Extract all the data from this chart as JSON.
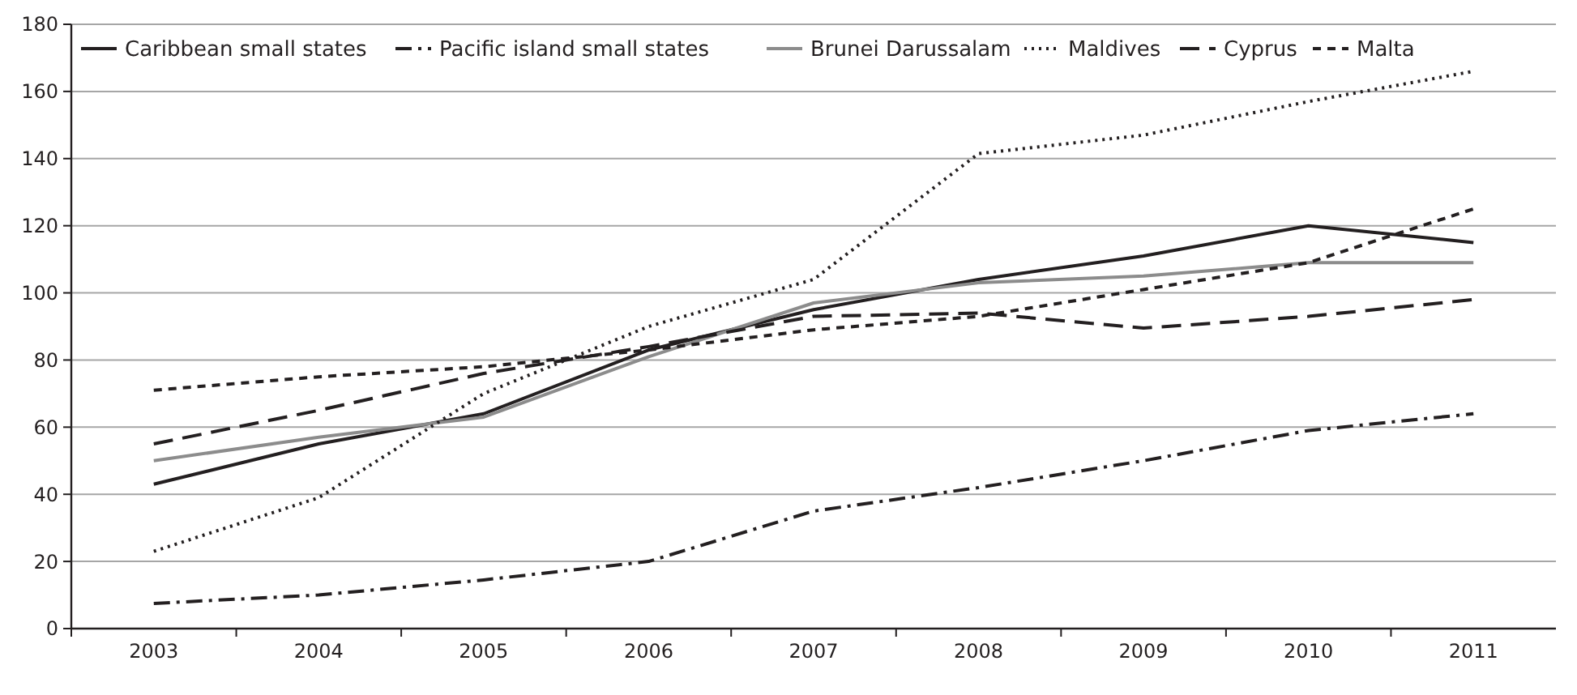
{
  "chart_data": {
    "type": "line",
    "categories": [
      "2003",
      "2004",
      "2005",
      "2006",
      "2007",
      "2008",
      "2009",
      "2010",
      "2011"
    ],
    "ylim": [
      0,
      180
    ],
    "yticks": [
      0,
      20,
      40,
      60,
      80,
      100,
      120,
      140,
      160,
      180
    ],
    "grid": "y",
    "legend": "top",
    "marker": "none",
    "series": [
      {
        "name": "Caribbean small states",
        "color": "#231f20",
        "line_style": "solid",
        "values": [
          43,
          55,
          64,
          83,
          95,
          104,
          111,
          120,
          115
        ]
      },
      {
        "name": "Pacific island small states",
        "color": "#231f20",
        "line_style": "dashdot",
        "values": [
          7.5,
          10,
          14.5,
          20,
          35,
          42,
          50,
          59,
          64
        ]
      },
      {
        "name": "Brunei Darussalam",
        "color": "#8c8c8c",
        "line_style": "solid",
        "values": [
          50,
          57,
          63,
          81,
          97,
          103,
          105,
          109,
          109
        ]
      },
      {
        "name": "Maldives",
        "color": "#231f20",
        "line_style": "dotted",
        "values": [
          23,
          39,
          70,
          90,
          104,
          141.5,
          147,
          157,
          166
        ]
      },
      {
        "name": "Cyprus",
        "color": "#231f20",
        "line_style": "longdash",
        "values": [
          55,
          65,
          76,
          84,
          93,
          94,
          89.5,
          93,
          98
        ]
      },
      {
        "name": "Malta",
        "color": "#231f20",
        "line_style": "dashed",
        "values": [
          71,
          75,
          78,
          83,
          89,
          93,
          101,
          109,
          125
        ]
      }
    ]
  }
}
